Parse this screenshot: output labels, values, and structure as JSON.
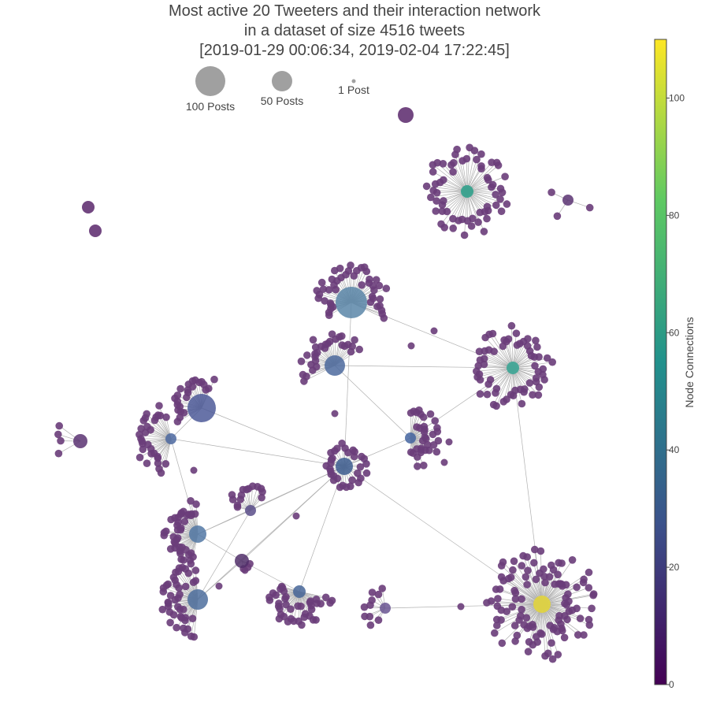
{
  "title_lines": [
    "Most active 20 Tweeters and their interaction network",
    "in a dataset of size 4516 tweets",
    "[2019-01-29 00:06:34, 2019-02-04 17:22:45]"
  ],
  "size_legend": [
    {
      "label": "100 Posts",
      "posts": 100
    },
    {
      "label": "50 Posts",
      "posts": 50
    },
    {
      "label": "1 Post",
      "posts": 1
    }
  ],
  "colorbar": {
    "title": "Node Connections",
    "min": 0,
    "max": 110,
    "ticks": [
      0,
      20,
      40,
      60,
      80,
      100
    ],
    "colors": [
      "#440154",
      "#3b528b",
      "#21918c",
      "#5ec962",
      "#fde725"
    ]
  },
  "colors": {
    "leaf_node": "#6a3d7a",
    "edge": "#b0b0b0",
    "legend_bubble": "#a0a0a0"
  }
}
